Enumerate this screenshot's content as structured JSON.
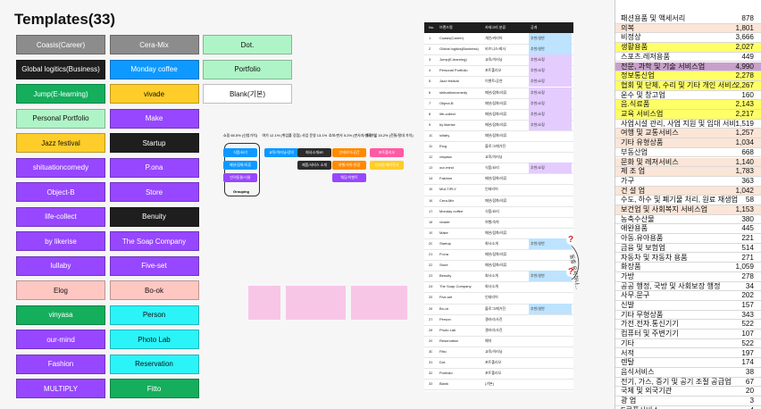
{
  "title": "Templates(33)",
  "templates": [
    [
      {
        "label": "Coasis(Career)",
        "color": "#8c8c8c"
      },
      {
        "label": "Global logitics(Business)",
        "color": "#1e1e1e"
      },
      {
        "label": "Jump(E-learning)",
        "color": "#14ae5c"
      },
      {
        "label": "Personal Portfolio",
        "color": "#aff4c6"
      },
      {
        "label": "Jazz festival",
        "color": "#ffcd29"
      },
      {
        "label": "shituationcomedy",
        "color": "#9747ff"
      },
      {
        "label": "Object-B",
        "color": "#9747ff"
      },
      {
        "label": "life-collect",
        "color": "#9747ff"
      },
      {
        "label": "by likerise",
        "color": "#9747ff"
      },
      {
        "label": "lullaby",
        "color": "#9747ff"
      },
      {
        "label": "Elog",
        "color": "#ffc7c2"
      },
      {
        "label": "vinyasa",
        "color": "#14ae5c"
      },
      {
        "label": "our-mind",
        "color": "#9747ff"
      },
      {
        "label": "Fashion",
        "color": "#9747ff"
      },
      {
        "label": "MULTIPLY",
        "color": "#9747ff"
      }
    ],
    [
      {
        "label": "Cera-Mix",
        "color": "#8c8c8c"
      },
      {
        "label": "Monday coffee",
        "color": "#0d99ff"
      },
      {
        "label": "vivade",
        "color": "#ffcd29"
      },
      {
        "label": "Make",
        "color": "#9747ff"
      },
      {
        "label": "Startup",
        "color": "#1e1e1e"
      },
      {
        "label": "P.ona",
        "color": "#9747ff"
      },
      {
        "label": "Store",
        "color": "#9747ff"
      },
      {
        "label": "Benuity",
        "color": "#1e1e1e"
      },
      {
        "label": "The Soap Company",
        "color": "#9747ff"
      },
      {
        "label": "Five-set",
        "color": "#9747ff"
      },
      {
        "label": "Bo-ok",
        "color": "#ffc7c2"
      },
      {
        "label": "Person",
        "color": "#2af4f8"
      },
      {
        "label": "Photo Lab",
        "color": "#2af4f8"
      },
      {
        "label": "Reservation",
        "color": "#2af4f8"
      },
      {
        "label": "Fitto",
        "color": "#14ae5c"
      }
    ],
    [
      {
        "label": "Dot.",
        "color": "#aff4c6"
      },
      {
        "label": "Portfolio",
        "color": "#aff4c6"
      },
      {
        "label": "Blank(기본)",
        "color": "#ffffff"
      }
    ]
  ],
  "diagram": {
    "columns": [
      {
        "header": "쇼핑 65.5% (신청가치)",
        "boxes": [
          {
            "label": "식품/요리",
            "color": "#0d99ff"
          },
          {
            "label": "패션/잡화/의류",
            "color": "#0d99ff"
          },
          {
            "label": "반려동물/식물",
            "color": "#9747ff"
          }
        ],
        "group": "Grouping"
      },
      {
        "header": "여가 12.1% (취업률 강점)",
        "boxes": [
          {
            "label": "교육/이러닝/강의",
            "color": "#0d99ff"
          }
        ]
      },
      {
        "header": "사업 운영 13.1%",
        "boxes": [
          {
            "label": "회사소개/IR",
            "color": "#2c2c2c"
          },
          {
            "label": "제품/서비스 소개",
            "color": "#2c2c2c"
          }
        ]
      },
      {
        "header": "호보/판사 5.2% (판사자/원로기)",
        "boxes": [
          {
            "label": "인테리어/공간",
            "color": "#ff8a00"
          },
          {
            "label": "여행/숙박/관광",
            "color": "#ff8a00"
          },
          {
            "label": "웨딩/이벤트",
            "color": "#9747ff"
          }
        ]
      },
      {
        "header": "최신 업 15.2% (전통/절대 가치)",
        "boxes": [
          {
            "label": "포트폴리오",
            "color": "#ff5aa5"
          },
          {
            "label": "디자인/에이전시",
            "color": "#ffcd29"
          }
        ]
      }
    ]
  },
  "table": {
    "headers": [
      "No.",
      "브랜드명",
      "카테고리 분류",
      "공개"
    ],
    "rows": [
      [
        "1",
        "Coasis(Career)",
        "개인/커리어",
        "추천/일반"
      ],
      [
        "2",
        "Global logitics(Business)",
        "비즈니스/회사",
        "추천/일반"
      ],
      [
        "3",
        "Jump(E-learning)",
        "교육/이러닝",
        "추천/쇼핑"
      ],
      [
        "4",
        "Personal Portfolio",
        "포트폴리오",
        "추천/쇼핑"
      ],
      [
        "5",
        "Jazz festival",
        "이벤트/공연",
        "추천/쇼핑"
      ],
      [
        "6",
        "shituationcomedy",
        "패션/잡화/의류",
        "추천/쇼핑"
      ],
      [
        "7",
        "Object-B",
        "패션/잡화/의류",
        "추천/쇼핑"
      ],
      [
        "8",
        "life-collect",
        "패션/잡화/의류",
        "추천/쇼핑"
      ],
      [
        "9",
        "by likerise",
        "패션/잡화/의류",
        "추천/쇼핑"
      ],
      [
        "10",
        "lullaby",
        "패션/잡화/의류"
      ],
      [
        "11",
        "Elog",
        "블로그/매거진"
      ],
      [
        "12",
        "vinyasa",
        "교육/이러닝"
      ],
      [
        "13",
        "our-mind",
        "식품/요리",
        "추천/쇼핑"
      ],
      [
        "14",
        "Fashion",
        "패션/잡화/의류"
      ],
      [
        "15",
        "MULTIPLY",
        "인테리어"
      ],
      [
        "16",
        "Cera-Mix",
        "패션/잡화/의류"
      ],
      [
        "17",
        "Monday coffee",
        "식품/요리"
      ],
      [
        "18",
        "vivade",
        "여행/숙박"
      ],
      [
        "19",
        "Make",
        "패션/잡화/의류"
      ],
      [
        "20",
        "Startup",
        "회사소개",
        "추천/일반"
      ],
      [
        "21",
        "P.ona",
        "패션/잡화/의류"
      ],
      [
        "22",
        "Store",
        "패션/잡화/의류"
      ],
      [
        "23",
        "Benuity",
        "회사소개",
        "추천/일반"
      ],
      [
        "24",
        "The Soap Company",
        "회사소개"
      ],
      [
        "25",
        "Five-set",
        "인테리어"
      ],
      [
        "26",
        "Bo-ok",
        "블로그/매거진",
        "추천/일반"
      ],
      [
        "27",
        "Person",
        "갤러리/사진"
      ],
      [
        "28",
        "Photo Lab",
        "갤러리/사진"
      ],
      [
        "29",
        "Reservation",
        "예약"
      ],
      [
        "30",
        "Fitto",
        "교육/이러닝"
      ],
      [
        "31",
        "Dot.",
        "포트폴리오"
      ],
      [
        "32",
        "Portfolio",
        "포트폴리오"
      ],
      [
        "33",
        "Blank",
        "(기본)"
      ]
    ],
    "note": "동종 유사하나..."
  },
  "stats": [
    {
      "label": "패션용품 및 액세서리",
      "value": "878"
    },
    {
      "label": "의복",
      "value": "1,801",
      "color": "#fbe5d6"
    },
    {
      "label": "비정상",
      "value": "3,666"
    },
    {
      "label": "생활용품",
      "value": "2,027",
      "color": "#ffff66"
    },
    {
      "label": "스포츠.레저용품",
      "value": "449"
    },
    {
      "label": "전문, 과학 및 기술 서비스업",
      "value": "4,990",
      "color": "#c9a0c9"
    },
    {
      "label": "정보통신업",
      "value": "2,278",
      "color": "#ffff66"
    },
    {
      "label": "협회 및 단체, 수리 및 기타 개인 서비스",
      "value": "2,267",
      "color": "#ffff66"
    },
    {
      "label": "운수 및 창고업",
      "value": "160"
    },
    {
      "label": "음.식료품",
      "value": "2,143",
      "color": "#ffff66"
    },
    {
      "label": "교육 서비스업",
      "value": "2,217",
      "color": "#ffff66"
    },
    {
      "label": "사업시설 관리, 사업 지원 및 임대 서비:",
      "value": "1,519"
    },
    {
      "label": "여행 및 교통서비스",
      "value": "1,257",
      "color": "#fbe5d6"
    },
    {
      "label": "기타 유형상품",
      "value": "1,034",
      "color": "#fbe5d6"
    },
    {
      "label": "부동산업",
      "value": "668"
    },
    {
      "label": "문화 및 레저서비스",
      "value": "1,140",
      "color": "#fbe5d6"
    },
    {
      "label": "제 조 업",
      "value": "1,783",
      "color": "#fbe5d6"
    },
    {
      "label": "가구",
      "value": "363"
    },
    {
      "label": "건 설 업",
      "value": "1,042",
      "color": "#fbe5d6"
    },
    {
      "label": "수도, 하수 및 폐기물 처리, 원료 재생업",
      "value": "58"
    },
    {
      "label": "보건업 및 사회복지 서비스업",
      "value": "1,153",
      "color": "#fbe5d6"
    },
    {
      "label": "농축수산물",
      "value": "380"
    },
    {
      "label": "애완용품",
      "value": "445"
    },
    {
      "label": "아동.유아용품",
      "value": "221"
    },
    {
      "label": "금융 및 보험업",
      "value": "514"
    },
    {
      "label": "자동차 및 자동차 용품",
      "value": "271"
    },
    {
      "label": "화장품",
      "value": "1,059"
    },
    {
      "label": "가방",
      "value": "278"
    },
    {
      "label": "공공 행정, 국방 및 사회보장 행정",
      "value": "34"
    },
    {
      "label": "사무.문구",
      "value": "202"
    },
    {
      "label": "신발",
      "value": "157"
    },
    {
      "label": "기타 무형상품",
      "value": "343"
    },
    {
      "label": "가전.전자.통신기기",
      "value": "522"
    },
    {
      "label": "컴퓨터 및 주변기기",
      "value": "107"
    },
    {
      "label": "기타",
      "value": "522"
    },
    {
      "label": "서적",
      "value": "197"
    },
    {
      "label": "렌탈",
      "value": "174"
    },
    {
      "label": "음식서비스",
      "value": "38"
    },
    {
      "label": "전기, 가스, 증기 및 공기 조절 공급업",
      "value": "67"
    },
    {
      "label": "국제 및 외국기관",
      "value": "20"
    },
    {
      "label": "광 업",
      "value": "3"
    },
    {
      "label": "E쿠폰서비스",
      "value": "4"
    }
  ]
}
